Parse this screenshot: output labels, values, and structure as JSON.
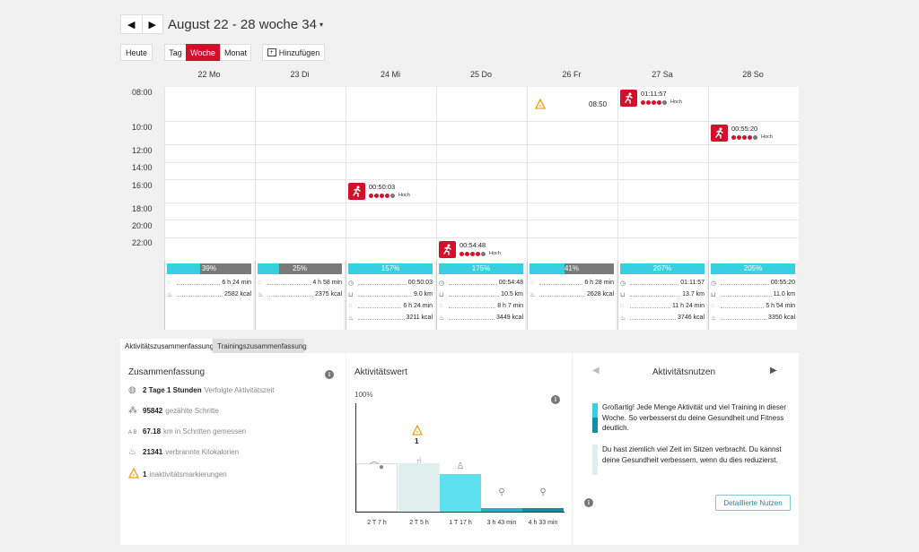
{
  "header": {
    "title": "August 22 - 28 woche 34",
    "prev_icon": "◀",
    "next_icon": "▶",
    "caret": "▾"
  },
  "toolbar": {
    "today": "Heute",
    "day": "Tag",
    "week": "Woche",
    "month": "Monat",
    "add": "Hinzufügen"
  },
  "days": [
    "22 Mo",
    "23 Di",
    "24 Mi",
    "25 Do",
    "26 Fr",
    "27 Sa",
    "28 So"
  ],
  "times": [
    "08:00",
    "10:00",
    "12:00",
    "14:00",
    "16:00",
    "18:00",
    "20:00",
    "22:00"
  ],
  "events": [
    {
      "duration": "00:50:03",
      "intensity": "Hoch"
    },
    {
      "duration": "00:54:48",
      "intensity": "Hoch"
    },
    {
      "time": "08:50"
    },
    {
      "duration": "01:11:57",
      "intensity": "Hoch"
    },
    {
      "duration": "00:55:20",
      "intensity": "Hoch"
    }
  ],
  "daily_stats": [
    {
      "pct": "39%",
      "fill": 0.39,
      "rows": [
        "6 h 24 min",
        "2582 kcal"
      ]
    },
    {
      "pct": "25%",
      "fill": 0.25,
      "rows": [
        "4 h 58 min",
        "2375 kcal"
      ]
    },
    {
      "pct": "157%",
      "fill": 1.0,
      "rows": [
        "00:50:03",
        "9.0 km",
        "6 h 24 min",
        "3211 kcal"
      ]
    },
    {
      "pct": "175%",
      "fill": 1.0,
      "rows": [
        "00:54:48",
        "10.5 km",
        "8 h 7 min",
        "3449 kcal"
      ]
    },
    {
      "pct": "41%",
      "fill": 0.41,
      "rows": [
        "6 h 28 min",
        "2628 kcal"
      ]
    },
    {
      "pct": "207%",
      "fill": 1.0,
      "rows": [
        "01:11:57",
        "13.7 km",
        "11 h 24 min",
        "3746 kcal"
      ]
    },
    {
      "pct": "205%",
      "fill": 1.0,
      "rows": [
        "00:55:20",
        "11.0 km",
        "5 h 54 min",
        "3350 kcal"
      ]
    }
  ],
  "tabs": {
    "activity": "Aktivitätszusammenfassung",
    "training": "Trainingszusammenfassung"
  },
  "summary": {
    "title": "Zusammenfassung",
    "rows": [
      {
        "value": "2 Tage 1 Stunden",
        "label": "Verfolgte Aktivitätszeit"
      },
      {
        "value": "95842",
        "label": "gezählte Schritte"
      },
      {
        "value": "67.18",
        "label": "km in Schritten gemessen"
      },
      {
        "value": "21341",
        "label": "verbrannte Kilokalorien"
      },
      {
        "value": "1",
        "label": "inaktivitätsmarkierungen"
      }
    ],
    "km_icon_letters": "A B"
  },
  "activity_value": {
    "title": "Aktivitätswert",
    "max_label": "100%",
    "marker_count": "1",
    "bars": [
      {
        "label": "2 T 7 h",
        "color": "#ffffff",
        "level": 0.45
      },
      {
        "label": "2 T 5 h",
        "color": "#e0eeee",
        "level": 0.45
      },
      {
        "label": "1 T 17 h",
        "color": "#5ee0ee",
        "level": 0.35
      },
      {
        "label": "3 h 43 min",
        "color": "#1fb5c7",
        "level": 0.03
      },
      {
        "label": "4 h 33 min",
        "color": "#138fa2",
        "level": 0.03
      }
    ]
  },
  "benefit": {
    "title": "Aktivitätsnutzen",
    "text1": "Großartig! Jede Menge Aktivität und viel Training in dieser Woche. So verbesserst du deine Gesundheit und Fitness deutlich.",
    "text2": "Du hast ziemlich viel Zeit im Sitzen verbracht. Du kannst deine Gesundheit verbessern, wenn du dies reduzierst.",
    "button": "Detaillierte Nutzen"
  },
  "colors": {
    "accent": "#d3102b",
    "cyan": "#38cfe0",
    "grey_bar": "#7a7a7a"
  }
}
